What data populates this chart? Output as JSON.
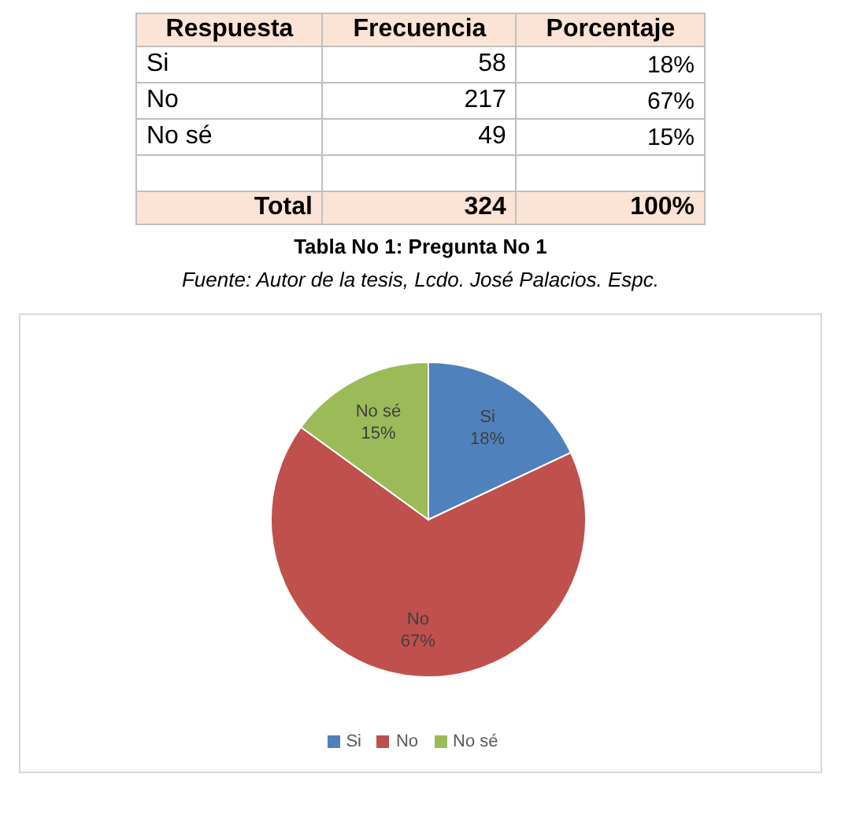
{
  "chart_data": [
    {
      "type": "other",
      "title": "Tabla No 1: Pregunta No 1",
      "subtitle": "Fuente: Autor de la tesis,  Lcdo. José Palacios. Espc.",
      "categories": [
        "Si",
        "No",
        "No sé"
      ],
      "value_labels": [
        "18%",
        "67%",
        "15%"
      ],
      "annotations": [
        "Respuesta",
        "Frecuencia",
        "Porcentaje",
        "58",
        "217",
        "49",
        "Total",
        "324",
        "100%"
      ]
    },
    {
      "type": "pie",
      "categories": [
        "Si",
        "No",
        "No sé"
      ],
      "values": [
        18,
        67,
        15
      ],
      "colors": [
        "#4f81bd",
        "#c0504d",
        "#9bbb59"
      ],
      "value_labels": [
        "18%",
        "67%",
        "15%"
      ],
      "legend": "bottom"
    }
  ]
}
